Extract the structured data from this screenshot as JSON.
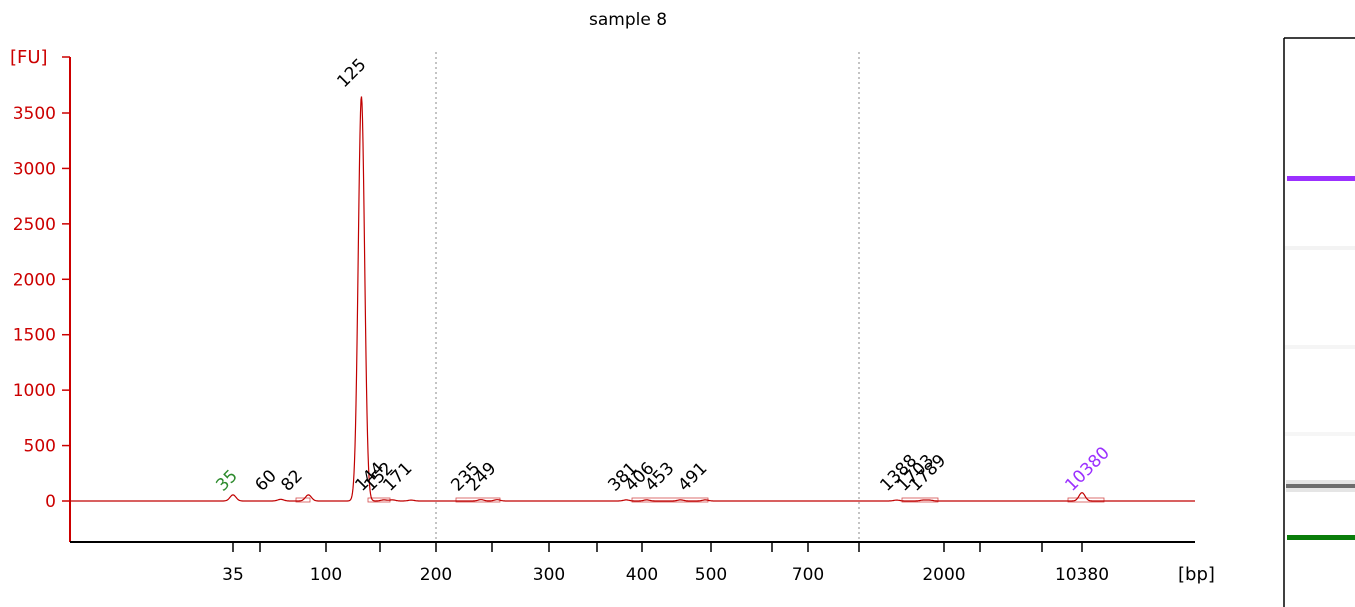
{
  "chart_data": {
    "type": "line",
    "title": "sample 8",
    "y_unit": "[FU]",
    "x_unit": "[bp]",
    "y_ticks": [
      0,
      500,
      1000,
      1500,
      2000,
      2500,
      3000,
      3500
    ],
    "ylim": [
      -350,
      4150
    ],
    "x_tick_labels": [
      "35",
      "100",
      "200",
      "300",
      "400",
      "500",
      "700",
      "2000",
      "10380"
    ],
    "x_scale": "piecewise (electropherogram ladder)",
    "grid": "dotted vertical lines at 200 and between 700 and 2000",
    "series": [
      {
        "color": "#c00000",
        "peaks": [
          {
            "x": 35,
            "y": 55
          },
          {
            "x": 60,
            "y": 15
          },
          {
            "x": 82,
            "y": 55
          },
          {
            "x": 125,
            "y": 3650
          },
          {
            "x": 144,
            "y": 10
          },
          {
            "x": 152,
            "y": 10
          },
          {
            "x": 171,
            "y": 8
          },
          {
            "x": 235,
            "y": 12
          },
          {
            "x": 249,
            "y": 12
          },
          {
            "x": 381,
            "y": 10
          },
          {
            "x": 406,
            "y": 10
          },
          {
            "x": 453,
            "y": 10
          },
          {
            "x": 491,
            "y": 10
          },
          {
            "x": 1388,
            "y": 8
          },
          {
            "x": 1703,
            "y": 8
          },
          {
            "x": 1789,
            "y": 8
          },
          {
            "x": 10380,
            "y": 75
          }
        ]
      }
    ],
    "peak_labels": [
      {
        "text": "35",
        "color": "#2e8b2e"
      },
      {
        "text": "60",
        "color": "#000000"
      },
      {
        "text": "82",
        "color": "#000000"
      },
      {
        "text": "125",
        "color": "#000000"
      },
      {
        "text": "144",
        "color": "#000000"
      },
      {
        "text": "152",
        "color": "#000000"
      },
      {
        "text": "171",
        "color": "#000000"
      },
      {
        "text": "235",
        "color": "#000000"
      },
      {
        "text": "249",
        "color": "#000000"
      },
      {
        "text": "381",
        "color": "#000000"
      },
      {
        "text": "406",
        "color": "#000000"
      },
      {
        "text": "453",
        "color": "#000000"
      },
      {
        "text": "491",
        "color": "#000000"
      },
      {
        "text": "1388",
        "color": "#000000"
      },
      {
        "text": "1703",
        "color": "#000000"
      },
      {
        "text": "1789",
        "color": "#000000"
      },
      {
        "text": "10380",
        "color": "#9b30ff"
      }
    ],
    "gel_lane": {
      "upper_marker_color": "#9b30ff",
      "lower_marker_color": "#0a7d0a",
      "band_color": "#444444"
    },
    "axis_color": "#cc0000"
  }
}
